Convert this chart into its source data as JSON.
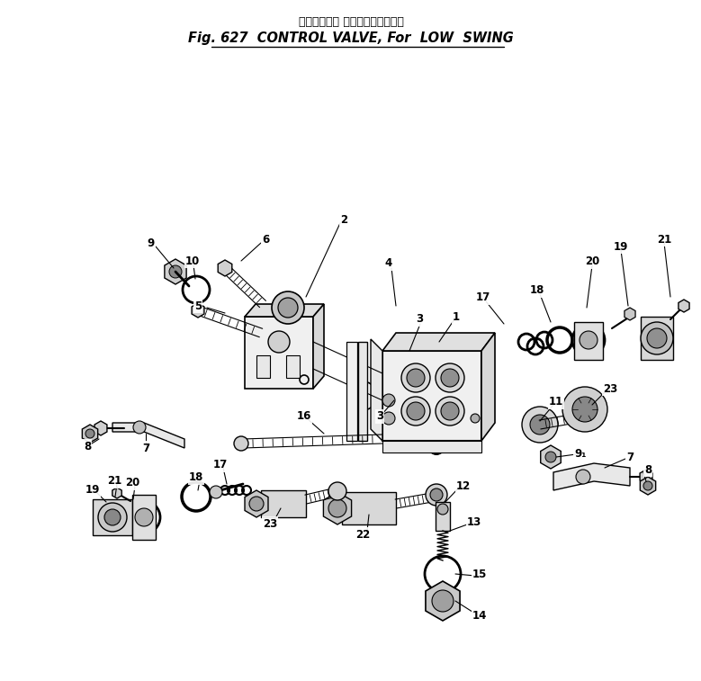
{
  "title_line1": "コントロール バルブ、低速度回用",
  "title_line2": "Fig. 627  CONTROL VALVE, For  LOW  SWING",
  "bg_color": "#ffffff",
  "lc": "#000000",
  "figsize": [
    7.79,
    7.57
  ],
  "dpi": 100
}
